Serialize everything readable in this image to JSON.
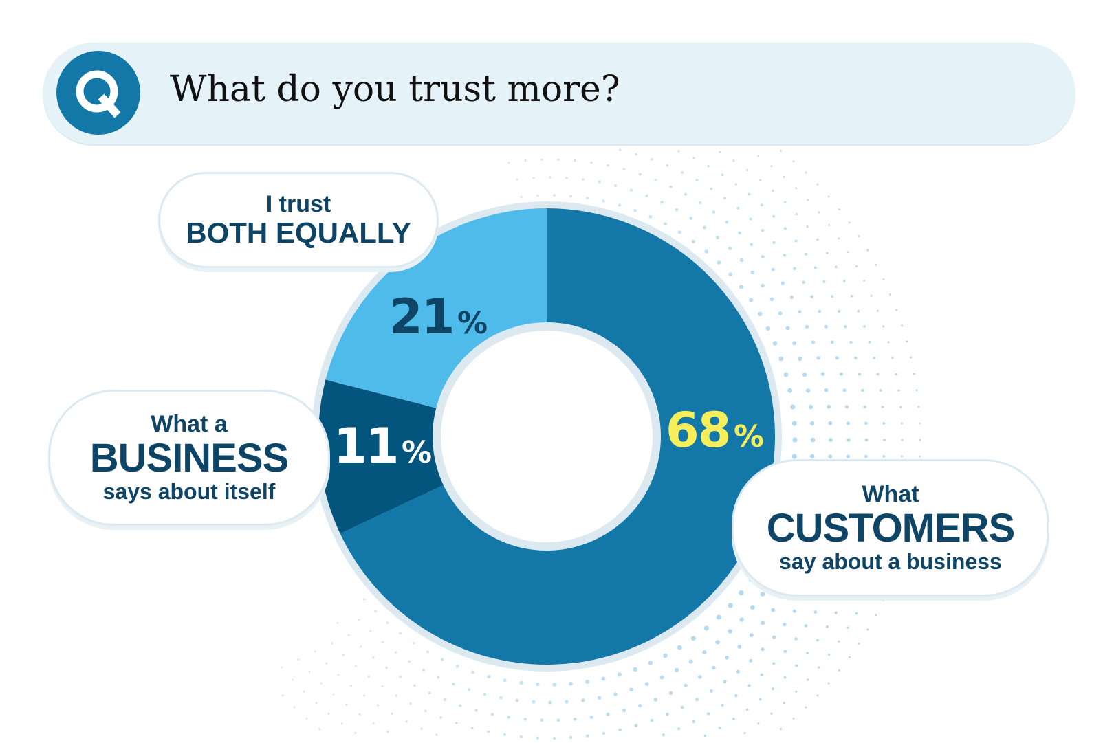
{
  "question": {
    "badge_letter": "Q",
    "text": "What do you trust more?"
  },
  "chart_data": {
    "type": "pie",
    "style": "donut",
    "slices": [
      {
        "key": "customers",
        "value": 68,
        "label": "68%",
        "label_lines": [
          "What",
          "CUSTOMERS",
          "say about a business"
        ],
        "color": "#1377a8",
        "label_color": "#f6ee5a"
      },
      {
        "key": "business",
        "value": 11,
        "label": "11%",
        "label_lines": [
          "What a",
          "BUSINESS",
          "says about itself"
        ],
        "color": "#04557d",
        "label_color": "#ffffff"
      },
      {
        "key": "both",
        "value": 21,
        "label": "21%",
        "label_lines": [
          "I trust",
          "BOTH EQUALLY"
        ],
        "color": "#4fbbea",
        "label_color": "#0e4566"
      }
    ]
  },
  "colors": {
    "question_bar": "#e5f2f8",
    "badge": "#1377a8",
    "bubble_text": "#0e4566",
    "ring_outline": "#dce9f0",
    "dots": "#a8d4ef"
  }
}
